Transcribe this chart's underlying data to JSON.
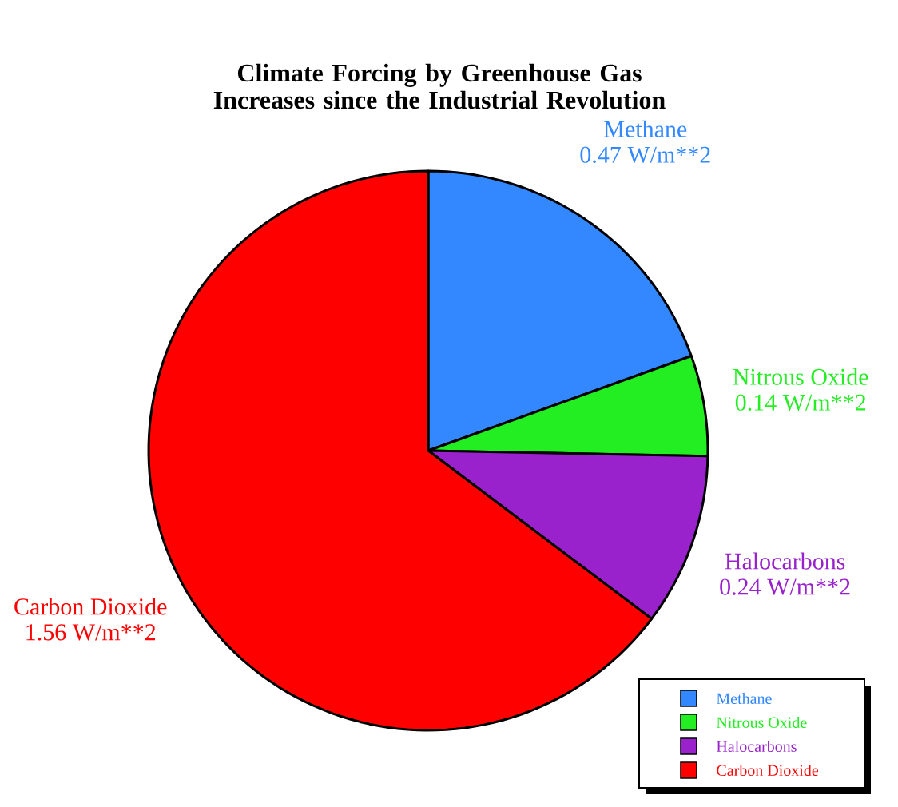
{
  "chart_data": {
    "type": "pie",
    "title": "Climate Forcing by Greenhouse Gas Increases since the Industrial Revolution",
    "categories": [
      "Methane",
      "Nitrous Oxide",
      "Halocarbons",
      "Carbon Dioxide"
    ],
    "values": [
      0.47,
      0.14,
      0.24,
      1.56
    ],
    "value_labels": [
      "0.47 W/m**2",
      "0.14 W/m**2",
      "0.24 W/m**2",
      "1.56 W/m**2"
    ],
    "colors": [
      "#3388ff",
      "#22ee22",
      "#9922cc",
      "#ff0000"
    ],
    "legend": "bottom right"
  }
}
